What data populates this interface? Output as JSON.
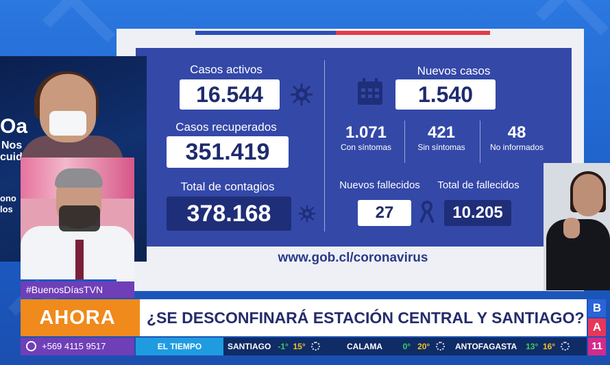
{
  "infographic": {
    "casos_activos": {
      "label": "Casos activos",
      "value": "16.544"
    },
    "casos_recuperados": {
      "label": "Casos recuperados",
      "value": "351.419"
    },
    "total_contagios": {
      "label": "Total de contagios",
      "value": "378.168"
    },
    "nuevos_casos": {
      "label": "Nuevos casos",
      "value": "1.540"
    },
    "breakdown": [
      {
        "value": "1.071",
        "label": "Con síntomas"
      },
      {
        "value": "421",
        "label": "Sin síntomas"
      },
      {
        "value": "48",
        "label": "No informados"
      }
    ],
    "nuevos_fallecidos": {
      "label": "Nuevos fallecidos",
      "value": "27"
    },
    "total_fallecidos": {
      "label": "Total de fallecidos",
      "value": "10.205"
    },
    "url": "www.gob.cl/coronavirus"
  },
  "studio": {
    "wall_text_big": "Oa",
    "wall_text_1": "Nos",
    "wall_text_2": "cuid",
    "wall_text_3": "ono",
    "wall_text_4": "los"
  },
  "lower_third": {
    "hashtag": "#BuenosDíasTVN",
    "ahora": "AHORA",
    "headline": "¿SE DESCONFINARÁ ESTACIÓN CENTRAL Y SANTIAGO?",
    "phone": "+569 4115 9517"
  },
  "weather": {
    "label": "EL TIEMPO",
    "cities": [
      {
        "name": "SANTIAGO",
        "min": "-1°",
        "max": "15°",
        "icon": "sun-icon"
      },
      {
        "name": "CALAMA",
        "min": "0°",
        "max": "20°",
        "icon": "sun-icon"
      },
      {
        "name": "ANTOFAGASTA",
        "min": "13°",
        "max": "16°",
        "icon": "sun-icon"
      }
    ]
  },
  "channel_logo": {
    "b": "B",
    "a": "A",
    "number": "11"
  },
  "colors": {
    "panel_blue": "#3448a8",
    "dark_box": "#1f2e78",
    "ahora_orange": "#f08a1c",
    "hashtag_purple": "#6f3fb8",
    "weather_label": "#1f9be0"
  }
}
